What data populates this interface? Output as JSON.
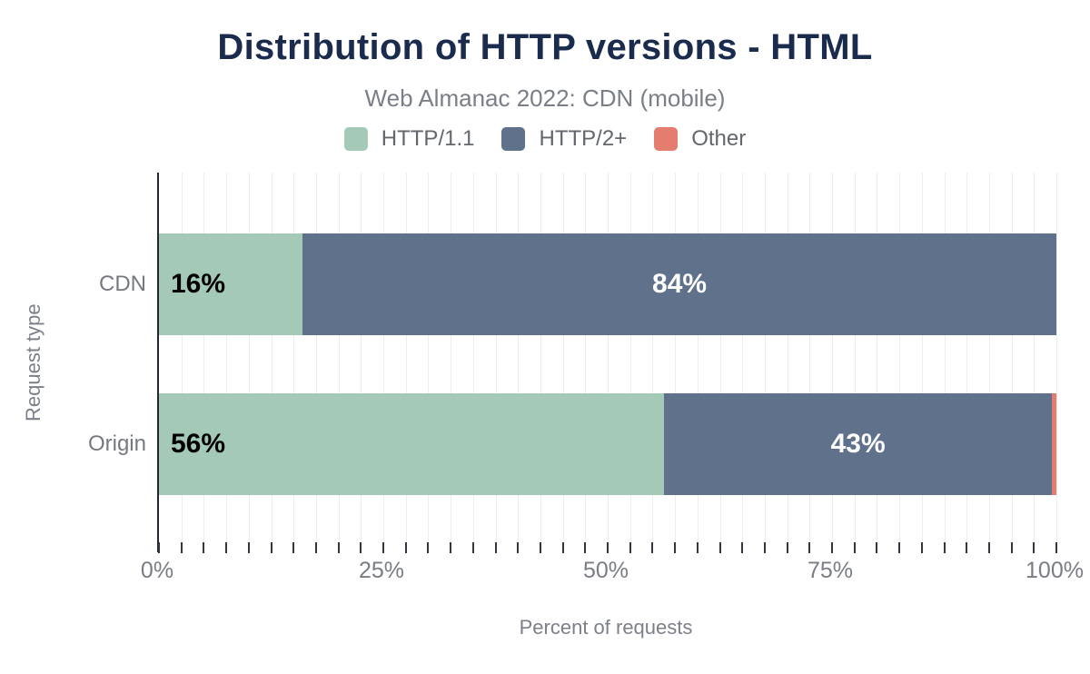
{
  "colors": {
    "background": "#ffffff",
    "title_text": "#1b2b4d",
    "subtitle_text": "#7a7f87",
    "muted_text": "#797d84",
    "axis_line": "#23272e",
    "gridline": "#ededed",
    "series_http11": "#a5c9b7",
    "series_http2plus": "#60718c",
    "series_other": "#e47c70",
    "bar_label_dark": "#000000",
    "bar_label_light": "#ffffff"
  },
  "chart_data": {
    "type": "bar",
    "orientation": "horizontal",
    "stacked": true,
    "grid": true,
    "legend_position": "top",
    "title": "Distribution of HTTP versions - HTML",
    "subtitle": "Web Almanac 2022: CDN (mobile)",
    "xlabel": "Percent of requests",
    "ylabel": "Request type",
    "xlim": [
      0,
      100
    ],
    "x_ticks": [
      {
        "value": 0,
        "label": "0%"
      },
      {
        "value": 25,
        "label": "25%"
      },
      {
        "value": 50,
        "label": "50%"
      },
      {
        "value": 75,
        "label": "75%"
      },
      {
        "value": 100,
        "label": "100%"
      }
    ],
    "minor_tick_step": 2.5,
    "categories": [
      "CDN",
      "Origin"
    ],
    "series": [
      {
        "name": "HTTP/1.1",
        "color": "#a5c9b7",
        "values": [
          16,
          56.3
        ],
        "data_labels": [
          "16%",
          "56%"
        ],
        "label_color": "#000000",
        "label_align": "left"
      },
      {
        "name": "HTTP/2+",
        "color": "#60718c",
        "values": [
          84,
          43.2
        ],
        "data_labels": [
          "84%",
          "43%"
        ],
        "label_color": "#ffffff",
        "label_align": "center"
      },
      {
        "name": "Other",
        "color": "#e47c70",
        "values": [
          0,
          0.5
        ],
        "data_labels": [
          "",
          ""
        ],
        "label_color": "#ffffff",
        "label_align": "center"
      }
    ]
  }
}
